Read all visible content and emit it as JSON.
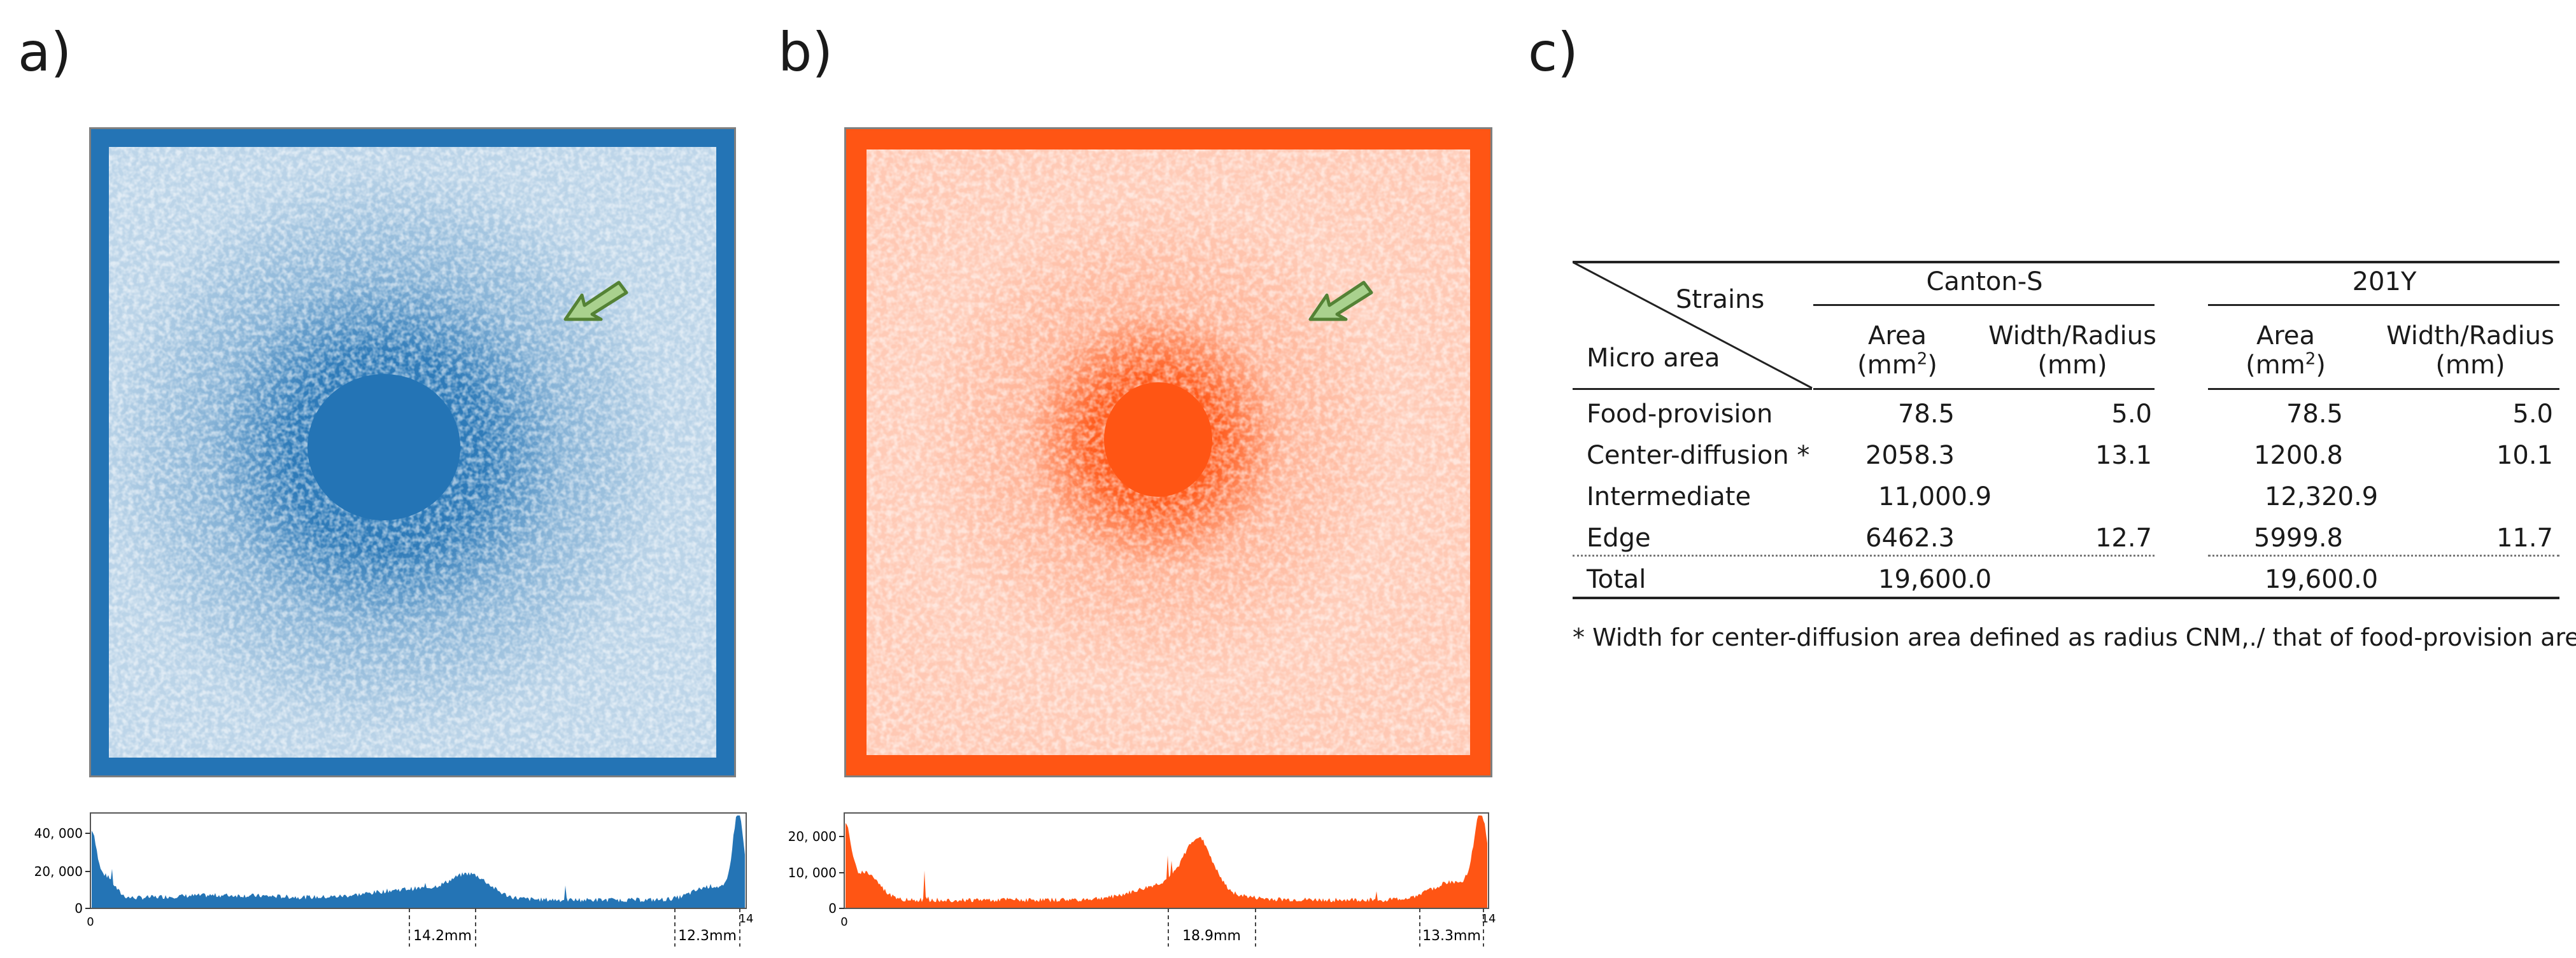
{
  "panels": {
    "a": {
      "letter": "a)",
      "color": "#2474b5"
    },
    "b": {
      "letter": "b)",
      "color": "#ff5514"
    },
    "c": {
      "letter": "c)"
    }
  },
  "histograms": {
    "a": {
      "color": "#2474b5",
      "y_ticks": [
        "40, 000",
        "20, 000",
        "0"
      ],
      "x_start": "0",
      "x_end": "14",
      "markers": [
        "14.2mm",
        "12.3mm"
      ]
    },
    "b": {
      "color": "#ff5514",
      "y_ticks": [
        "20, 000",
        "10, 000",
        "0"
      ],
      "x_start": "0",
      "x_end": "14",
      "markers": [
        "18.9mm",
        "13.3mm"
      ]
    }
  },
  "table": {
    "header": {
      "strains": "Strains",
      "micro_area": "Micro area",
      "strain1": "Canton-S",
      "strain2": "201Y",
      "area_label": "Area",
      "area_unit_pre": "(mm",
      "area_unit_sup": "2",
      "area_unit_post": ")",
      "width_label": "Width/Radius",
      "width_unit": "(mm)"
    },
    "rows": [
      {
        "name": "Food-provision",
        "c_area": "78.5",
        "c_width": "5.0",
        "y_area": "78.5",
        "y_width": "5.0"
      },
      {
        "name": "Center-diffusion *",
        "c_area": "2058.3",
        "c_width": "13.1",
        "y_area": "1200.8",
        "y_width": "10.1"
      },
      {
        "name": "Intermediate",
        "c_area": "11,000.9",
        "c_width": "",
        "y_area": "12,320.9",
        "y_width": ""
      },
      {
        "name": "Edge",
        "c_area": "6462.3",
        "c_width": "12.7",
        "y_area": "5999.8",
        "y_width": "11.7"
      },
      {
        "name": "Total",
        "c_area": "19,600.0",
        "c_width": "",
        "y_area": "19,600.0",
        "y_width": ""
      }
    ],
    "footnote": "* Width for center-diffusion area defined as radius CNM,./  that of food-provision area"
  },
  "annotations": {
    "arrow_color": "#a9d18e",
    "arrow_stroke": "#548235"
  }
}
